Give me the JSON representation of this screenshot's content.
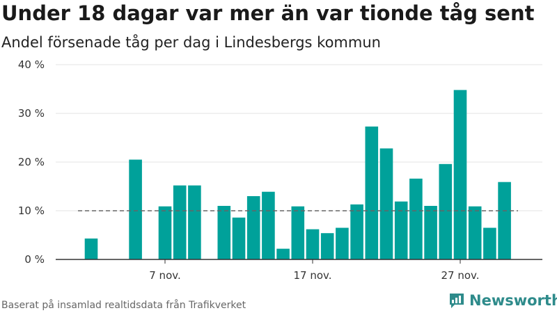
{
  "title": "Under 18 dagar var mer än var tionde tåg sent",
  "subtitle": "Andel försenade tåg per dag i Lindesbergs kommun",
  "source": "Baserat på insamlad realtidsdata från Trafikverket",
  "brand": "Newsworthy",
  "colors": {
    "bar": "#00a19a",
    "reference": "#666666",
    "brand": "#2e8b8b"
  },
  "chart_data": {
    "type": "bar",
    "unit": "%",
    "categories": [
      "1 nov.",
      "2 nov.",
      "3 nov.",
      "4 nov.",
      "5 nov.",
      "6 nov.",
      "7 nov.",
      "8 nov.",
      "9 nov.",
      "10 nov.",
      "11 nov.",
      "12 nov.",
      "13 nov.",
      "14 nov.",
      "15 nov.",
      "16 nov.",
      "17 nov.",
      "18 nov.",
      "19 nov.",
      "20 nov.",
      "21 nov.",
      "22 nov.",
      "23 nov.",
      "24 nov.",
      "25 nov.",
      "26 nov.",
      "27 nov.",
      "28 nov.",
      "29 nov.",
      "30 nov."
    ],
    "values": [
      null,
      4.3,
      null,
      null,
      20.5,
      null,
      10.9,
      15.2,
      15.2,
      null,
      11.0,
      8.6,
      13.0,
      13.9,
      2.2,
      10.9,
      6.2,
      5.4,
      6.5,
      11.3,
      27.3,
      22.8,
      11.9,
      16.6,
      11.0,
      19.6,
      34.8,
      10.9,
      6.5,
      15.9
    ],
    "x_tick_labels": [
      "7 nov.",
      "17 nov.",
      "27 nov."
    ],
    "x_tick_categories": [
      "7 nov.",
      "17 nov.",
      "27 nov."
    ],
    "y_ticks": [
      0,
      10,
      20,
      30,
      40
    ],
    "y_tick_labels": [
      "0 %",
      "10 %",
      "20 %",
      "30 %",
      "40 %"
    ],
    "ylim": [
      0,
      40
    ],
    "reference_line": {
      "value": 10,
      "style": "dashed"
    },
    "grid": true
  }
}
